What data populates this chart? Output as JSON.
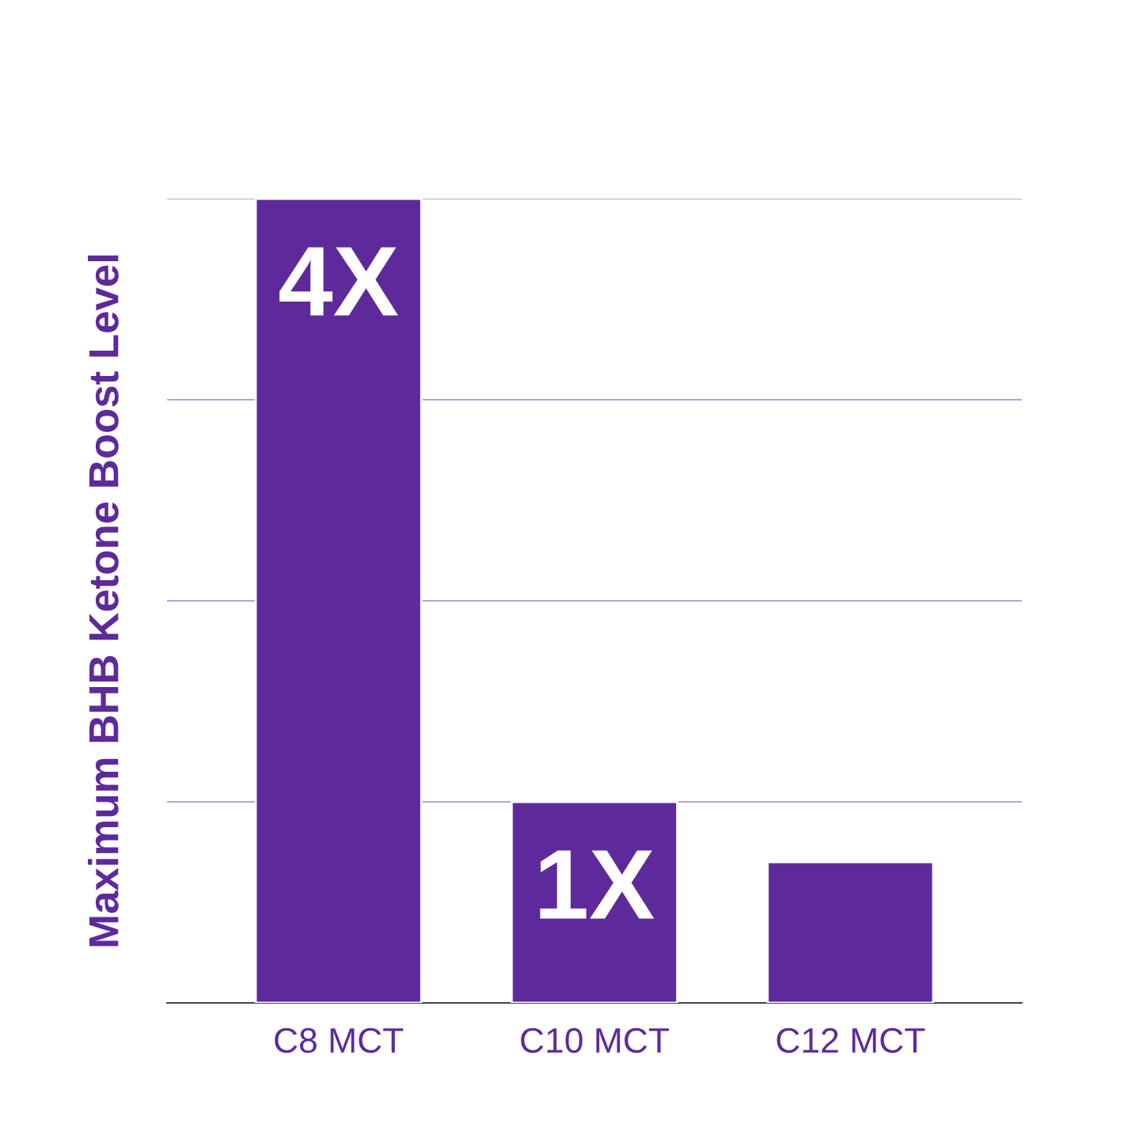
{
  "chart_data": {
    "type": "bar",
    "ylabel": "Maximum BHB Ketone Boost Level",
    "categories": [
      "C8 MCT",
      "C10 MCT",
      "C12 MCT"
    ],
    "values": [
      4,
      1,
      0.7
    ],
    "color": "#5e2a9b",
    "value_labels": [
      "4X",
      "1X",
      null
    ],
    "ylim": [
      0,
      4
    ],
    "yticks": [
      {
        "value": 0,
        "label": null
      },
      {
        "value": 1,
        "label": null
      },
      {
        "value": 2,
        "label": null
      },
      {
        "value": 3,
        "label": null
      },
      {
        "value": 4,
        "label": null
      }
    ],
    "grid": "y"
  }
}
